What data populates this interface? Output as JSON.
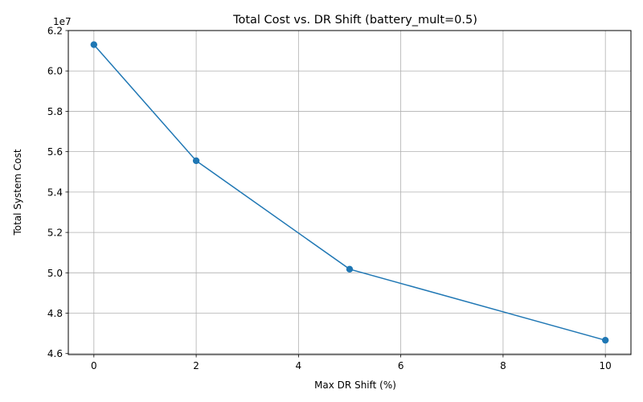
{
  "chart_data": {
    "type": "line",
    "title": "Total Cost vs. DR Shift (battery_mult=0.5)",
    "xlabel": "Max DR Shift (%)",
    "ylabel": "Total System Cost",
    "y_offset_label": "1e7",
    "y_scale": 10000000,
    "x": [
      0,
      2,
      5,
      10
    ],
    "y": [
      61300000,
      55550000,
      50180000,
      46660000
    ],
    "xlim": [
      -0.5,
      10.5
    ],
    "ylim": [
      45950000,
      62000000
    ],
    "xticks": [
      0,
      2,
      4,
      6,
      8,
      10
    ],
    "yticks": [
      46000000,
      48000000,
      50000000,
      52000000,
      54000000,
      56000000,
      58000000,
      60000000,
      62000000
    ],
    "ytick_labels": [
      "4.6",
      "4.8",
      "5.0",
      "5.2",
      "5.4",
      "5.6",
      "5.8",
      "6.0",
      "6.2"
    ],
    "xtick_labels": [
      "0",
      "2",
      "4",
      "6",
      "8",
      "10"
    ],
    "grid": true,
    "series_color": "#1f77b4",
    "marker": "circle"
  }
}
